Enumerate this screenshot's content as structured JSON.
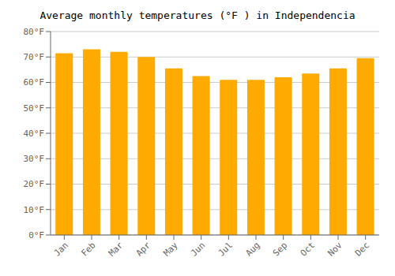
{
  "chart_data": {
    "type": "bar",
    "title": "Average monthly temperatures (°F ) in Independencia",
    "categories": [
      "Jan",
      "Feb",
      "Mar",
      "Apr",
      "May",
      "Jun",
      "Jul",
      "Aug",
      "Sep",
      "Oct",
      "Nov",
      "Dec"
    ],
    "values": [
      71.5,
      73,
      72,
      70,
      65.5,
      62.5,
      61,
      61,
      62,
      63.5,
      65.5,
      69.5
    ],
    "color": "#FFAA00",
    "ylim": [
      0,
      80
    ],
    "yticks": [
      {
        "value": 0,
        "label": "0°F"
      },
      {
        "value": 10,
        "label": "10°F"
      },
      {
        "value": 20,
        "label": "20°F"
      },
      {
        "value": 30,
        "label": "30°F"
      },
      {
        "value": 40,
        "label": "40°F"
      },
      {
        "value": 50,
        "label": "50°F"
      },
      {
        "value": 60,
        "label": "60°F"
      },
      {
        "value": 70,
        "label": "70°F"
      },
      {
        "value": 80,
        "label": "80°F"
      }
    ],
    "grid": true
  }
}
